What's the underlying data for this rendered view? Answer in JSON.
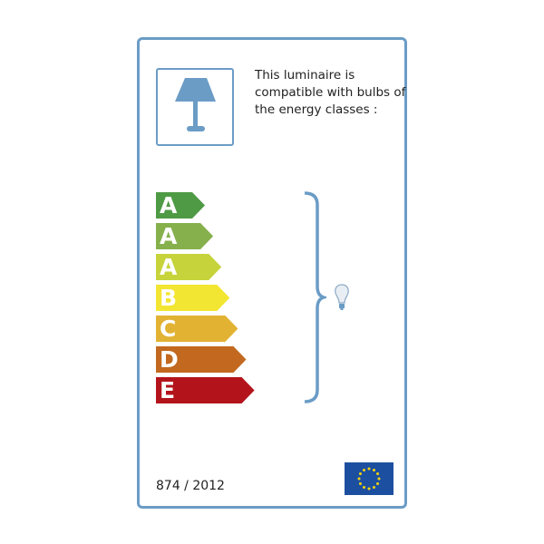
{
  "label": {
    "intro_text": "This luminaire is compatible with bulbs of the energy classes :",
    "classes": [
      {
        "letter": "A",
        "color": "#4e9a45"
      },
      {
        "letter": "A",
        "color": "#86b04c"
      },
      {
        "letter": "A",
        "color": "#c6d33a"
      },
      {
        "letter": "B",
        "color": "#f3e632"
      },
      {
        "letter": "C",
        "color": "#e2b233"
      },
      {
        "letter": "D",
        "color": "#c2691f"
      },
      {
        "letter": "E",
        "color": "#b3141b"
      }
    ],
    "regulation": "874 / 2012",
    "icons": {
      "lamp": "table-lamp-icon",
      "bulb": "light-bulb-icon",
      "flag": "eu-flag"
    },
    "frame_color": "#6b9cc6"
  }
}
